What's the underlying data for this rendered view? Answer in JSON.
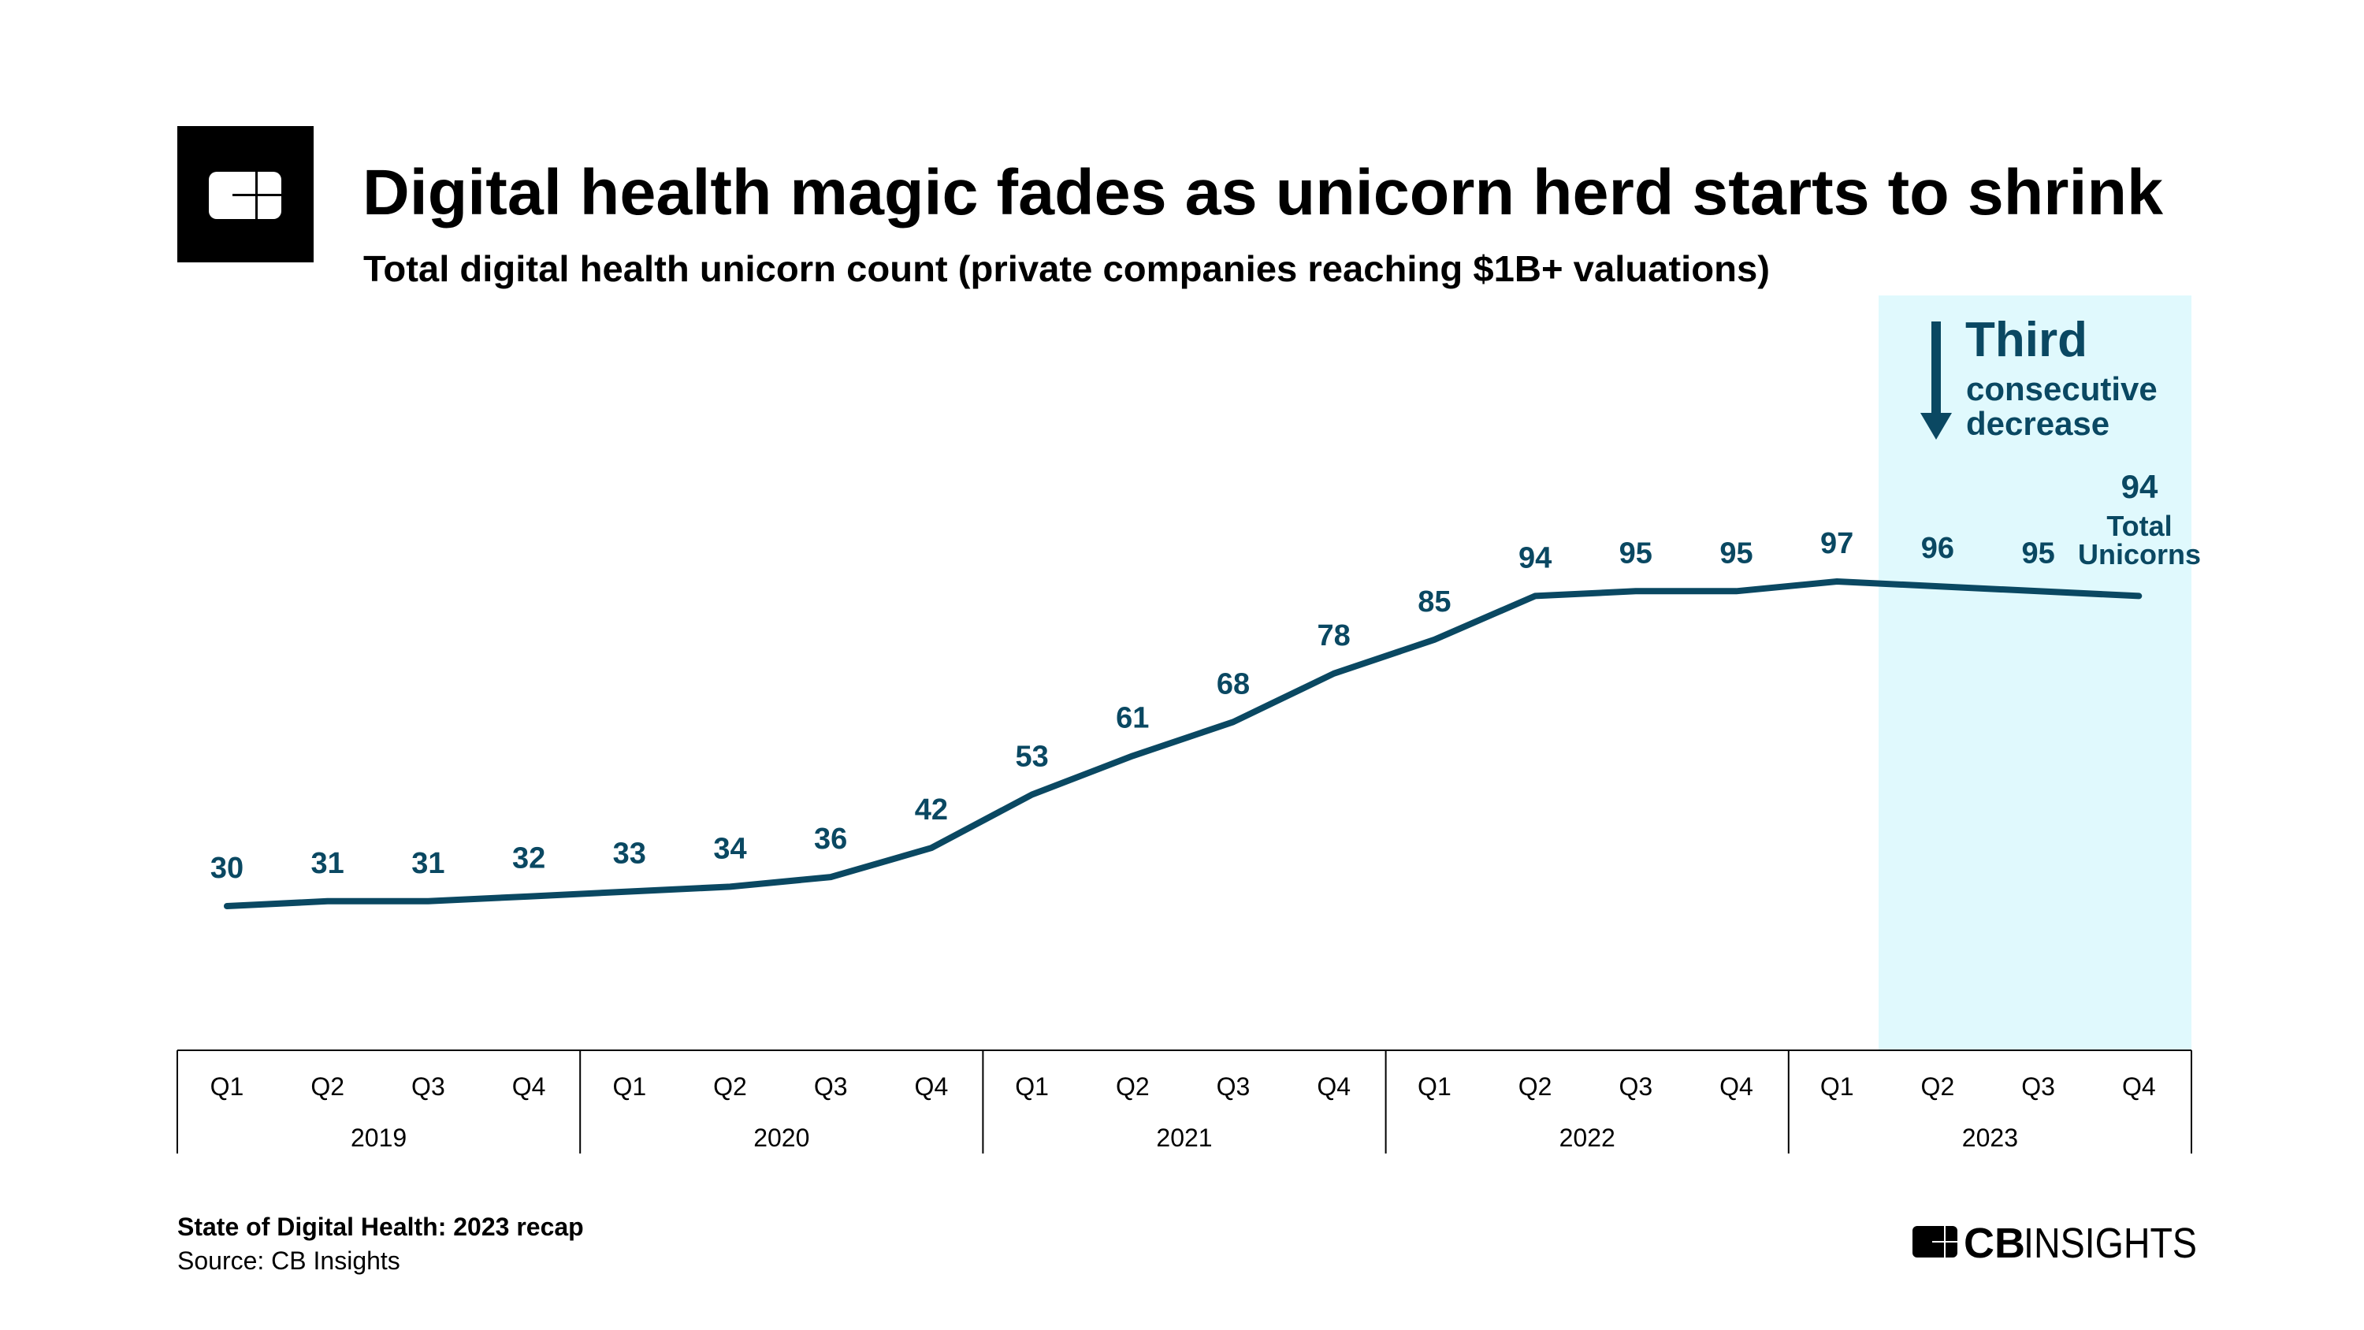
{
  "header": {
    "title": "Digital health magic fades as unicorn herd starts to shrink",
    "subtitle": "Total digital health unicorn count (private companies reaching $1B+ valuations)"
  },
  "annotation": {
    "headline": "Third",
    "line1": "consecutive",
    "line2": "decrease",
    "icon": "down-arrow-icon",
    "highlight_color": "#e0f9fd",
    "highlight_range": [
      "2023 Q1",
      "2023 Q4"
    ]
  },
  "end_label": {
    "value": "94",
    "line1": "Total",
    "line2": "Unicorns"
  },
  "footer": {
    "report": "State of Digital Health: 2023 recap",
    "source": "Source: CB Insights",
    "brand_bold": "CB",
    "brand_light": "INSIGHTS"
  },
  "colors": {
    "line": "#0a4862",
    "text": "#000000",
    "highlight": "#e0f9fd"
  },
  "chart_data": {
    "type": "line",
    "title": "Digital health magic fades as unicorn herd starts to shrink",
    "subtitle": "Total digital health unicorn count (private companies reaching $1B+ valuations)",
    "years": [
      "2019",
      "2020",
      "2021",
      "2022",
      "2023"
    ],
    "quarters": [
      "Q1",
      "Q2",
      "Q3",
      "Q4"
    ],
    "categories": [
      "2019 Q1",
      "2019 Q2",
      "2019 Q3",
      "2019 Q4",
      "2020 Q1",
      "2020 Q2",
      "2020 Q3",
      "2020 Q4",
      "2021 Q1",
      "2021 Q2",
      "2021 Q3",
      "2021 Q4",
      "2022 Q1",
      "2022 Q2",
      "2022 Q3",
      "2022 Q4",
      "2023 Q1",
      "2023 Q2",
      "2023 Q3",
      "2023 Q4"
    ],
    "values": [
      30,
      31,
      31,
      32,
      33,
      34,
      36,
      42,
      53,
      61,
      68,
      78,
      85,
      94,
      95,
      95,
      97,
      96,
      95,
      94
    ],
    "data_labels": true,
    "grid": false,
    "xlabel": "",
    "ylabel": ""
  }
}
